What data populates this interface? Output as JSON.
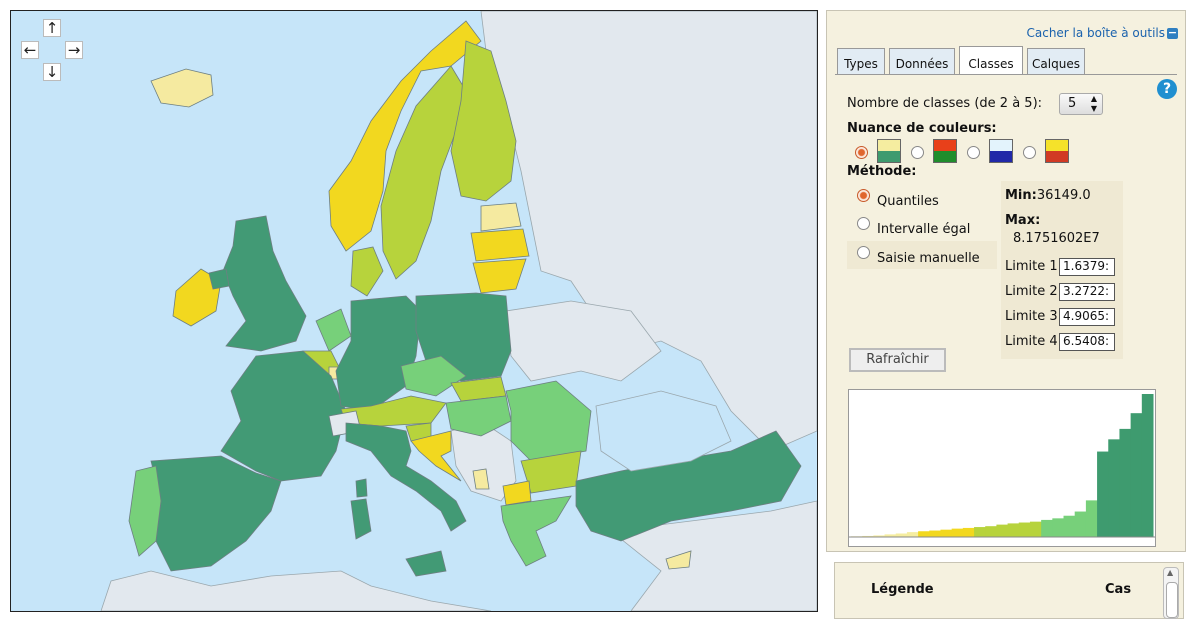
{
  "map": {
    "nav": {
      "up": "↑",
      "down": "↓",
      "left": "←",
      "right": "→"
    },
    "colors": {
      "sea": "#c6e5f9",
      "no_data": "#e2e8ee",
      "class1": "#f5eaa0",
      "class2": "#f2d81f",
      "class3": "#b7d33c",
      "class4": "#77d07a",
      "class5": "#429a75",
      "border": "#6d7f82"
    }
  },
  "panel": {
    "hide_toolbox": "Cacher la boîte à outils",
    "tabs": [
      "Types",
      "Données",
      "Classes",
      "Calques"
    ],
    "active_tab": "Classes",
    "classes_label": "Nombre de classes (de 2 à 5):",
    "classes_value": "5",
    "shade_label": "Nuance de couleurs:",
    "swatches": [
      {
        "top": "#f5eda0",
        "bottom": "#3e9b6f",
        "selected": true
      },
      {
        "top": "#e8401a",
        "bottom": "#1f8d2c",
        "selected": false
      },
      {
        "top": "#e3f3fc",
        "bottom": "#2028a8",
        "selected": false
      },
      {
        "top": "#f5e22a",
        "bottom": "#d13a24",
        "selected": false
      }
    ],
    "method_label": "Méthode:",
    "methods": [
      {
        "label": "Quantiles",
        "selected": true
      },
      {
        "label": "Intervalle égal",
        "selected": false
      },
      {
        "label": "Saisie manuelle",
        "selected": false
      }
    ],
    "min_label": "Min:",
    "min_value": "36149.0",
    "max_label": "Max:",
    "max_value": "8.1751602E7",
    "limits": [
      {
        "label": "Limite 1:",
        "value": "1.6379:"
      },
      {
        "label": "Limite 2:",
        "value": "3.2722:"
      },
      {
        "label": "Limite 3:",
        "value": "4.9065:"
      },
      {
        "label": "Limite 4:",
        "value": "6.5408:"
      }
    ],
    "refresh_label": "Rafraîchir",
    "help": "?"
  },
  "legend": {
    "title": "Légende",
    "cases": "Cas"
  },
  "chart_data": {
    "type": "bar",
    "series": [
      {
        "values": [
          0.04,
          0.06,
          0.09,
          0.15,
          0.2,
          0.28,
          0.33,
          0.37,
          0.42,
          0.48,
          0.52,
          0.57,
          0.62,
          0.71,
          0.78,
          0.83,
          0.88,
          0.98,
          1.07,
          1.22,
          1.46,
          2.1,
          4.9,
          5.6,
          6.2,
          7.1,
          8.2
        ]
      }
    ],
    "class_colors": [
      "#f5eda0",
      "#f2d81f",
      "#b7d33c",
      "#77d07a",
      "#3e9b6f"
    ],
    "grid": false
  }
}
